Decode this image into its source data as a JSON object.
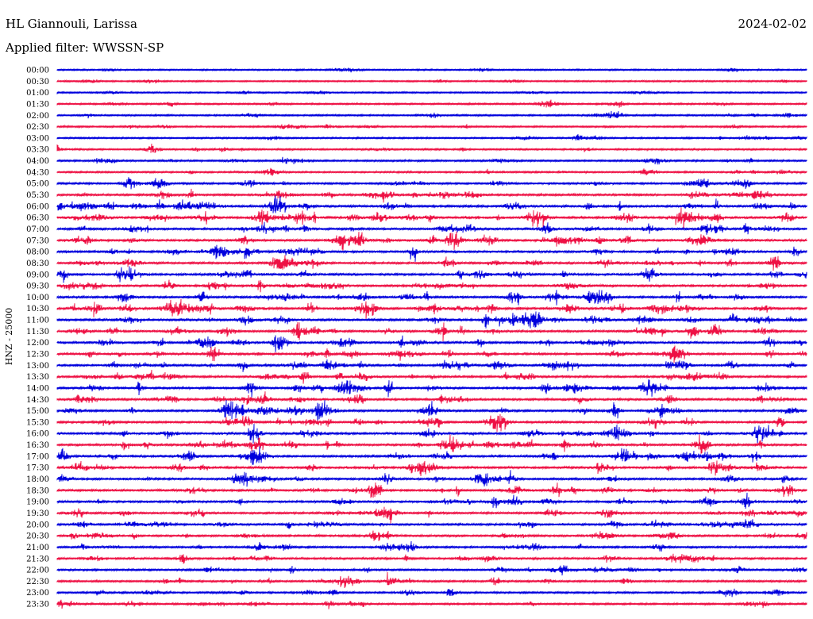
{
  "header": {
    "station": "HL Giannouli, Larissa",
    "date": "2024-02-02",
    "filter": "Applied filter: WWSSN-SP"
  },
  "chart_data": {
    "type": "line",
    "ylabel": "HNZ - 25000",
    "rows": [
      "00:00",
      "00:30",
      "01:00",
      "01:30",
      "02:00",
      "02:30",
      "03:00",
      "03:30",
      "04:00",
      "04:30",
      "05:00",
      "05:30",
      "06:00",
      "06:30",
      "07:00",
      "07:30",
      "08:00",
      "08:30",
      "09:00",
      "09:30",
      "10:00",
      "10:30",
      "11:00",
      "11:30",
      "12:00",
      "12:30",
      "13:00",
      "13:30",
      "14:00",
      "14:30",
      "15:00",
      "15:30",
      "16:00",
      "16:30",
      "17:00",
      "17:30",
      "18:00",
      "18:30",
      "19:00",
      "19:30",
      "20:00",
      "20:30",
      "21:00",
      "21:30",
      "22:00",
      "22:30",
      "23:00",
      "23:30"
    ],
    "row_minutes": 30,
    "colors": [
      "#0000dd",
      "#ee1144"
    ],
    "activity": [
      0.06,
      0.05,
      0.06,
      0.12,
      0.15,
      0.14,
      0.12,
      0.14,
      0.2,
      0.18,
      0.3,
      0.42,
      0.55,
      0.58,
      0.48,
      0.42,
      0.45,
      0.42,
      0.46,
      0.45,
      0.48,
      0.55,
      0.55,
      0.45,
      0.48,
      0.45,
      0.48,
      0.45,
      0.5,
      0.45,
      0.44,
      0.44,
      0.46,
      0.46,
      0.5,
      0.44,
      0.42,
      0.42,
      0.42,
      0.38,
      0.36,
      0.35,
      0.34,
      0.34,
      0.32,
      0.3,
      0.25,
      0.25
    ]
  }
}
